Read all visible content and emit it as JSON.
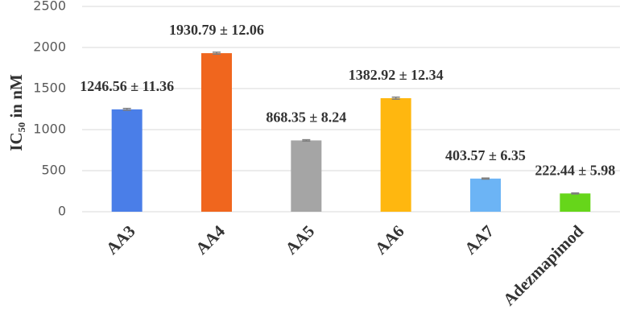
{
  "chart_data": {
    "type": "bar",
    "y_label": "IC₅₀ in nM",
    "categories": [
      "AA3",
      "AA4",
      "AA5",
      "AA6",
      "AA7",
      "Adezmapimod"
    ],
    "values": [
      1246.56,
      1930.79,
      868.35,
      1382.92,
      403.57,
      222.44
    ],
    "errors": [
      11.36,
      12.06,
      8.24,
      12.34,
      6.35,
      5.98
    ],
    "value_labels": [
      "1246.56 ± 11.36",
      "1930.79 ± 12.06",
      "868.35 ± 8.24",
      "1382.92 ± 12.34",
      "403.57 ± 6.35",
      "222.44 ± 5.98"
    ],
    "colors": [
      "#4a7ee8",
      "#f0661e",
      "#a5a5a5",
      "#ffb70f",
      "#6cb4f5",
      "#66d61a"
    ],
    "ylim": [
      0,
      2500
    ],
    "yticks": [
      0,
      500,
      1000,
      1500,
      2000,
      2500
    ],
    "grid": true
  }
}
